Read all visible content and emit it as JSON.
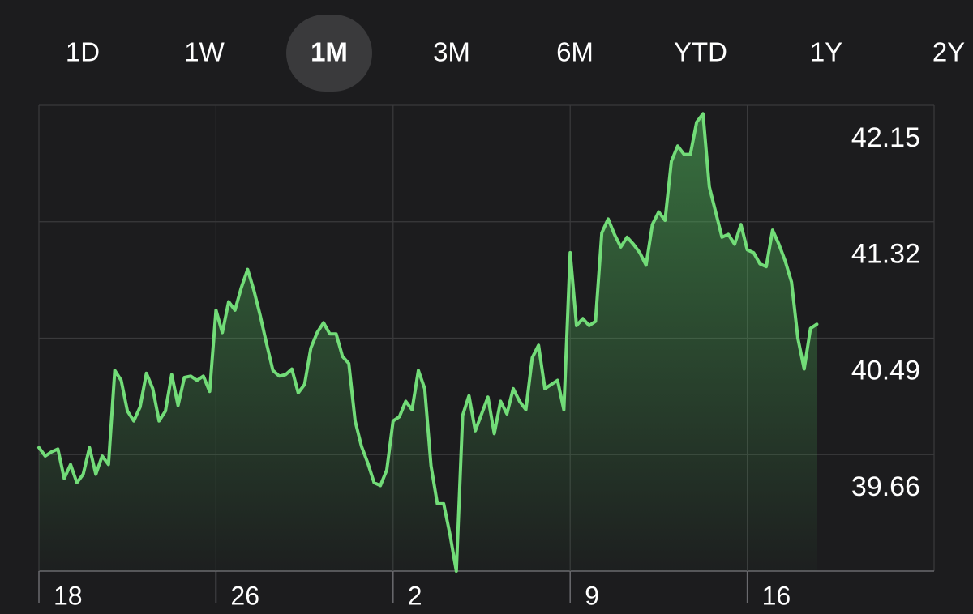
{
  "tabs": [
    {
      "label": "1D"
    },
    {
      "label": "1W"
    },
    {
      "label": "1M",
      "selected": true
    },
    {
      "label": "3M"
    },
    {
      "label": "6M"
    },
    {
      "label": "YTD"
    },
    {
      "label": "1Y"
    },
    {
      "label": "2Y"
    }
  ],
  "chart_data": {
    "type": "line",
    "color": "#72dc78",
    "grid": true,
    "categories": [
      "18",
      null,
      null,
      null,
      null,
      null,
      null,
      null,
      null,
      null,
      null,
      null,
      null,
      null,
      null,
      null,
      null,
      null,
      null,
      null,
      null,
      null,
      null,
      null,
      null,
      null,
      null,
      null,
      "26",
      null,
      null,
      null,
      null,
      null,
      null,
      null,
      null,
      null,
      null,
      null,
      null,
      null,
      null,
      null,
      null,
      null,
      null,
      null,
      null,
      null,
      null,
      null,
      null,
      null,
      null,
      null,
      "2",
      null,
      null,
      null,
      null,
      null,
      null,
      null,
      null,
      null,
      null,
      null,
      null,
      null,
      null,
      null,
      null,
      null,
      null,
      null,
      null,
      null,
      null,
      null,
      null,
      null,
      null,
      null,
      "9",
      null,
      null,
      null,
      null,
      null,
      null,
      null,
      null,
      null,
      null,
      null,
      null,
      null,
      null,
      null,
      null,
      null,
      null,
      null,
      null,
      null,
      null,
      null,
      null,
      null,
      null,
      null,
      "16",
      null,
      null,
      null,
      null,
      null,
      null,
      null,
      null,
      null,
      null,
      null
    ],
    "values": [
      39.71,
      39.65,
      39.68,
      39.7,
      39.49,
      39.59,
      39.46,
      39.52,
      39.71,
      39.52,
      39.65,
      39.59,
      40.26,
      40.19,
      39.97,
      39.9,
      40.0,
      40.24,
      40.13,
      39.9,
      39.97,
      40.23,
      40.01,
      40.21,
      40.22,
      40.19,
      40.22,
      40.11,
      40.69,
      40.53,
      40.75,
      40.69,
      40.85,
      40.98,
      40.83,
      40.65,
      40.45,
      40.26,
      40.22,
      40.23,
      40.27,
      40.1,
      40.16,
      40.42,
      40.53,
      40.6,
      40.52,
      40.52,
      40.36,
      40.31,
      39.9,
      39.72,
      39.6,
      39.46,
      39.44,
      39.55,
      39.9,
      39.93,
      40.04,
      39.98,
      40.26,
      40.13,
      39.58,
      39.31,
      39.31,
      39.09,
      38.83,
      39.94,
      40.08,
      39.83,
      39.95,
      40.07,
      39.81,
      40.04,
      39.95,
      40.13,
      40.04,
      39.98,
      40.35,
      40.44,
      40.13,
      40.16,
      40.19,
      39.98,
      41.1,
      40.58,
      40.63,
      40.58,
      40.61,
      41.24,
      41.34,
      41.23,
      41.14,
      41.21,
      41.16,
      41.1,
      41.01,
      41.3,
      41.39,
      41.33,
      41.75,
      41.86,
      41.8,
      41.8,
      42.03,
      42.09,
      41.57,
      41.39,
      41.21,
      41.23,
      41.16,
      41.3,
      41.12,
      41.1,
      41.02,
      41.0,
      41.26,
      41.16,
      41.04,
      40.89,
      40.49,
      40.27,
      40.56,
      40.59
    ],
    "ylim": [
      38.83,
      42.15
    ],
    "yticks": [
      42.15,
      41.32,
      40.49,
      39.66
    ]
  }
}
